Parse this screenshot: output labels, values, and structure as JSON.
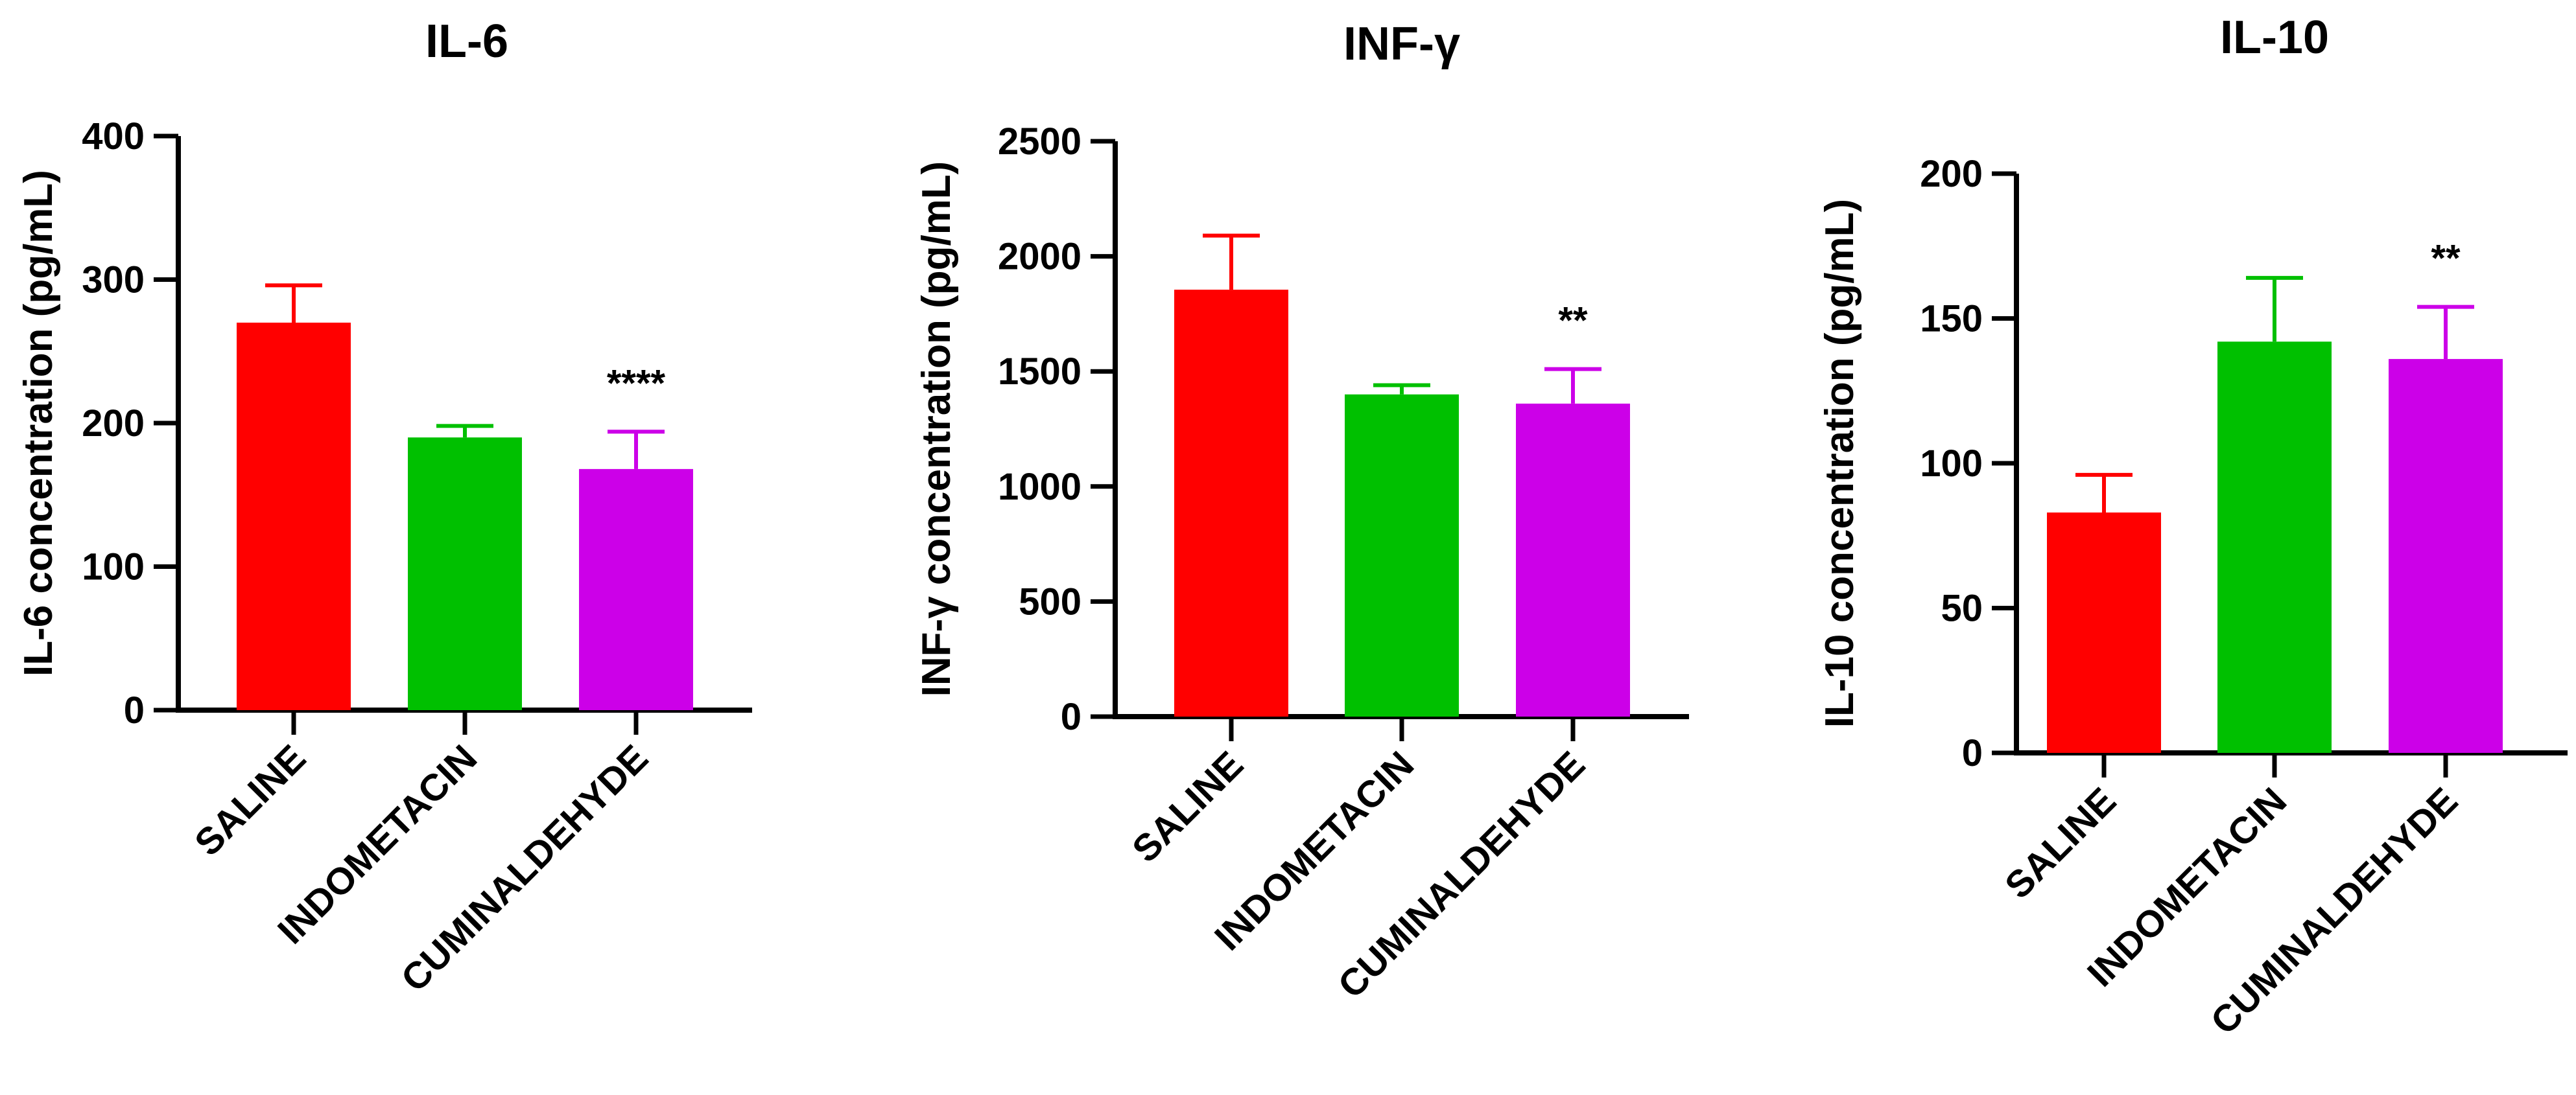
{
  "chart_data": [
    {
      "type": "bar",
      "title": "IL-6",
      "xlabel": "",
      "ylabel": "IL-6 concentration (pg/mL)",
      "ylim": [
        0,
        400
      ],
      "yticks": [
        0,
        100,
        200,
        300,
        400
      ],
      "categories": [
        "SALINE",
        "INDOMETACIN",
        "CUMINALDEHYDE"
      ],
      "values": [
        270,
        190,
        168
      ],
      "errors": [
        26,
        8,
        26
      ],
      "colors": [
        "#ff0000",
        "#00c000",
        "#cc00e8"
      ],
      "annotations": [
        "",
        "",
        "****"
      ]
    },
    {
      "type": "bar",
      "title": "INF-γ",
      "xlabel": "",
      "ylabel": "INF-γ concentration (pg/mL)",
      "ylim": [
        0,
        2500
      ],
      "yticks": [
        0,
        500,
        1000,
        1500,
        2000,
        2500
      ],
      "categories": [
        "SALINE",
        "INDOMETACIN",
        "CUMINALDEHYDE"
      ],
      "values": [
        1855,
        1400,
        1360
      ],
      "errors": [
        235,
        40,
        150
      ],
      "colors": [
        "#ff0000",
        "#00c000",
        "#cc00e8"
      ],
      "annotations": [
        "",
        "",
        "**"
      ]
    },
    {
      "type": "bar",
      "title": "IL-10",
      "xlabel": "",
      "ylabel": "IL-10 concentration (pg/mL)",
      "ylim": [
        0,
        200
      ],
      "yticks": [
        0,
        50,
        100,
        150,
        200
      ],
      "categories": [
        "SALINE",
        "INDOMETACIN",
        "CUMINALDEHYDE"
      ],
      "values": [
        83,
        142,
        136
      ],
      "errors": [
        13,
        22,
        18
      ],
      "colors": [
        "#ff0000",
        "#00c000",
        "#cc00e8"
      ],
      "annotations": [
        "",
        "",
        "**"
      ]
    }
  ]
}
